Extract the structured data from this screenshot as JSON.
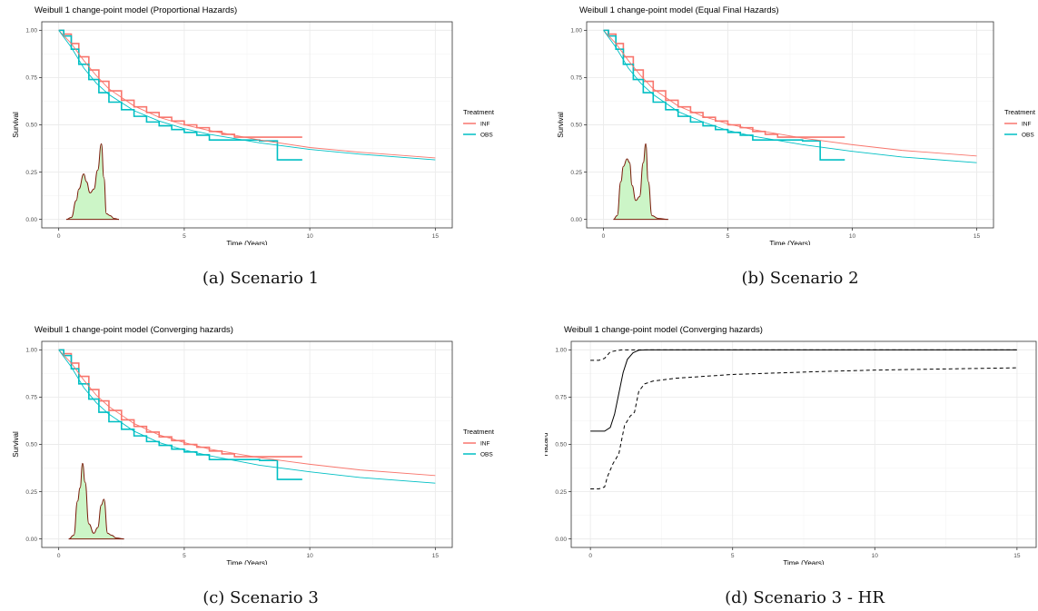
{
  "colors": {
    "inf": "#F8766D",
    "obs": "#00BFC4",
    "density_fill": "#ccf5c7",
    "density_line": "#7a1a0a",
    "grid_major": "#ebebeb",
    "grid_minor": "#f4f4f4",
    "axis_text": "#4d4d4d"
  },
  "captions": [
    "(a) Scenario 1",
    "(b) Scenario 2",
    "(c) Scenario 3",
    "(d) Scenario 3 - HR"
  ],
  "chart_data": [
    {
      "type": "line",
      "title": "Weibull 1 change-point model (Proportional Hazards)",
      "xlabel": "Time (Years)",
      "ylabel": "Survival",
      "xlim": [
        0,
        15
      ],
      "ylim": [
        0,
        1
      ],
      "xticks": [
        0,
        5,
        10,
        15
      ],
      "yticks": [
        0,
        0.25,
        0.5,
        0.75,
        1
      ],
      "xtick_labels": [
        "0",
        "5",
        "10",
        "15"
      ],
      "ytick_labels": [
        "0.00",
        "0.25",
        "0.50",
        "0.75",
        "1.00"
      ],
      "grid": true,
      "legend": {
        "title": "Treatment",
        "position": "right",
        "entries": [
          "INF",
          "OBS"
        ]
      },
      "series": [
        {
          "name": "INF",
          "kind": "km",
          "x": [
            0,
            0.2,
            0.5,
            0.8,
            1.2,
            1.6,
            2,
            2.5,
            3,
            3.5,
            4,
            4.5,
            5,
            5.5,
            6,
            6.5,
            7,
            8,
            9,
            9.7
          ],
          "y": [
            1,
            0.98,
            0.93,
            0.86,
            0.79,
            0.73,
            0.68,
            0.63,
            0.595,
            0.565,
            0.54,
            0.52,
            0.5,
            0.485,
            0.465,
            0.45,
            0.435,
            0.435,
            0.435,
            0.435
          ]
        },
        {
          "name": "OBS",
          "kind": "km",
          "x": [
            0,
            0.2,
            0.5,
            0.8,
            1.2,
            1.6,
            2,
            2.5,
            3,
            3.5,
            4,
            4.5,
            5,
            5.5,
            6,
            7,
            8,
            8.7,
            8.71,
            9.7
          ],
          "y": [
            1,
            0.97,
            0.9,
            0.82,
            0.74,
            0.67,
            0.62,
            0.58,
            0.545,
            0.515,
            0.495,
            0.475,
            0.46,
            0.445,
            0.42,
            0.42,
            0.415,
            0.415,
            0.315,
            0.315
          ]
        },
        {
          "name": "INF",
          "kind": "fit",
          "x": [
            0,
            0.5,
            1,
            1.5,
            2,
            3,
            4,
            5,
            6,
            8,
            10,
            12,
            15
          ],
          "y": [
            1,
            0.93,
            0.84,
            0.76,
            0.69,
            0.6,
            0.54,
            0.5,
            0.47,
            0.42,
            0.38,
            0.355,
            0.325
          ]
        },
        {
          "name": "OBS",
          "kind": "fit",
          "x": [
            0,
            0.5,
            1,
            1.5,
            2,
            3,
            4,
            5,
            6,
            8,
            10,
            12,
            15
          ],
          "y": [
            1,
            0.91,
            0.8,
            0.72,
            0.66,
            0.575,
            0.52,
            0.48,
            0.45,
            0.405,
            0.37,
            0.345,
            0.315
          ]
        },
        {
          "name": "density",
          "kind": "density",
          "x": [
            0.3,
            0.5,
            0.7,
            0.8,
            1.0,
            1.1,
            1.25,
            1.4,
            1.55,
            1.7,
            1.8,
            1.9,
            2.05,
            2.2,
            2.4
          ],
          "y": [
            0.0,
            0.01,
            0.1,
            0.16,
            0.24,
            0.2,
            0.14,
            0.16,
            0.26,
            0.4,
            0.22,
            0.03,
            0.02,
            0.005,
            0.0
          ]
        }
      ]
    },
    {
      "type": "line",
      "title": "Weibull 1 change-point model (Equal Final Hazards)",
      "xlabel": "Time (Years)",
      "ylabel": "Survival",
      "xlim": [
        0,
        15
      ],
      "ylim": [
        0,
        1
      ],
      "xticks": [
        0,
        5,
        10,
        15
      ],
      "yticks": [
        0,
        0.25,
        0.5,
        0.75,
        1
      ],
      "xtick_labels": [
        "0",
        "5",
        "10",
        "15"
      ],
      "ytick_labels": [
        "0.00",
        "0.25",
        "0.50",
        "0.75",
        "1.00"
      ],
      "grid": true,
      "legend": {
        "title": "Treatment",
        "position": "right",
        "entries": [
          "INF",
          "OBS"
        ]
      },
      "series": [
        {
          "name": "INF",
          "kind": "km",
          "x": [
            0,
            0.2,
            0.5,
            0.8,
            1.2,
            1.6,
            2,
            2.5,
            3,
            3.5,
            4,
            4.5,
            5,
            5.5,
            6,
            6.5,
            7,
            8,
            9,
            9.7
          ],
          "y": [
            1,
            0.98,
            0.93,
            0.86,
            0.79,
            0.73,
            0.68,
            0.63,
            0.595,
            0.565,
            0.54,
            0.52,
            0.5,
            0.485,
            0.465,
            0.45,
            0.435,
            0.435,
            0.435,
            0.435
          ]
        },
        {
          "name": "OBS",
          "kind": "km",
          "x": [
            0,
            0.2,
            0.5,
            0.8,
            1.2,
            1.6,
            2,
            2.5,
            3,
            3.5,
            4,
            4.5,
            5,
            5.5,
            6,
            7,
            8,
            8.7,
            8.71,
            9.7
          ],
          "y": [
            1,
            0.97,
            0.9,
            0.82,
            0.74,
            0.67,
            0.62,
            0.58,
            0.545,
            0.515,
            0.495,
            0.475,
            0.46,
            0.445,
            0.42,
            0.42,
            0.415,
            0.415,
            0.315,
            0.315
          ]
        },
        {
          "name": "INF",
          "kind": "fit",
          "x": [
            0,
            0.5,
            1,
            1.5,
            2,
            3,
            4,
            5,
            6,
            8,
            10,
            12,
            15
          ],
          "y": [
            1,
            0.93,
            0.84,
            0.76,
            0.69,
            0.6,
            0.545,
            0.505,
            0.475,
            0.43,
            0.395,
            0.365,
            0.335
          ]
        },
        {
          "name": "OBS",
          "kind": "fit",
          "x": [
            0,
            0.5,
            1,
            1.5,
            2,
            3,
            4,
            5,
            6,
            8,
            10,
            12,
            15
          ],
          "y": [
            1,
            0.91,
            0.8,
            0.72,
            0.66,
            0.57,
            0.515,
            0.47,
            0.44,
            0.395,
            0.36,
            0.33,
            0.3
          ]
        },
        {
          "name": "density",
          "kind": "density",
          "x": [
            0.4,
            0.55,
            0.7,
            0.8,
            0.95,
            1.05,
            1.15,
            1.3,
            1.45,
            1.6,
            1.7,
            1.8,
            1.95,
            2.2,
            2.6
          ],
          "y": [
            0.0,
            0.02,
            0.2,
            0.28,
            0.32,
            0.3,
            0.18,
            0.1,
            0.12,
            0.3,
            0.4,
            0.2,
            0.02,
            0.005,
            0.0
          ]
        }
      ]
    },
    {
      "type": "line",
      "title": "Weibull 1 change-point model (Converging hazards)",
      "xlabel": "Time (Years)",
      "ylabel": "Survival",
      "xlim": [
        0,
        15
      ],
      "ylim": [
        0,
        1
      ],
      "xticks": [
        0,
        5,
        10,
        15
      ],
      "yticks": [
        0,
        0.25,
        0.5,
        0.75,
        1
      ],
      "xtick_labels": [
        "0",
        "5",
        "10",
        "15"
      ],
      "ytick_labels": [
        "0.00",
        "0.25",
        "0.50",
        "0.75",
        "1.00"
      ],
      "grid": true,
      "legend": {
        "title": "Treatment",
        "position": "right",
        "entries": [
          "INF",
          "OBS"
        ]
      },
      "series": [
        {
          "name": "INF",
          "kind": "km",
          "x": [
            0,
            0.2,
            0.5,
            0.8,
            1.2,
            1.6,
            2,
            2.5,
            3,
            3.5,
            4,
            4.5,
            5,
            5.5,
            6,
            6.5,
            7,
            8,
            9,
            9.7
          ],
          "y": [
            1,
            0.98,
            0.93,
            0.86,
            0.79,
            0.73,
            0.68,
            0.63,
            0.595,
            0.565,
            0.54,
            0.52,
            0.5,
            0.485,
            0.465,
            0.45,
            0.435,
            0.435,
            0.435,
            0.435
          ]
        },
        {
          "name": "OBS",
          "kind": "km",
          "x": [
            0,
            0.2,
            0.5,
            0.8,
            1.2,
            1.6,
            2,
            2.5,
            3,
            3.5,
            4,
            4.5,
            5,
            5.5,
            6,
            7,
            8,
            8.7,
            8.71,
            9.7
          ],
          "y": [
            1,
            0.97,
            0.9,
            0.82,
            0.74,
            0.67,
            0.62,
            0.58,
            0.545,
            0.515,
            0.495,
            0.475,
            0.46,
            0.445,
            0.42,
            0.42,
            0.415,
            0.415,
            0.315,
            0.315
          ]
        },
        {
          "name": "INF",
          "kind": "fit",
          "x": [
            0,
            0.5,
            1,
            1.5,
            2,
            3,
            4,
            5,
            6,
            8,
            10,
            12,
            15
          ],
          "y": [
            1,
            0.93,
            0.84,
            0.76,
            0.7,
            0.61,
            0.55,
            0.51,
            0.475,
            0.43,
            0.395,
            0.365,
            0.335
          ]
        },
        {
          "name": "OBS",
          "kind": "fit",
          "x": [
            0,
            0.5,
            1,
            1.5,
            2,
            3,
            4,
            5,
            6,
            8,
            10,
            12,
            15
          ],
          "y": [
            1,
            0.91,
            0.8,
            0.72,
            0.66,
            0.57,
            0.51,
            0.47,
            0.44,
            0.39,
            0.355,
            0.325,
            0.295
          ]
        },
        {
          "name": "density",
          "kind": "density",
          "x": [
            0.4,
            0.6,
            0.75,
            0.85,
            0.95,
            1.05,
            1.2,
            1.4,
            1.55,
            1.7,
            1.8,
            1.95,
            2.1,
            2.3,
            2.6
          ],
          "y": [
            0.0,
            0.02,
            0.2,
            0.27,
            0.4,
            0.3,
            0.08,
            0.03,
            0.06,
            0.18,
            0.21,
            0.03,
            0.02,
            0.005,
            0.0
          ]
        }
      ]
    },
    {
      "type": "line",
      "title": "Weibull 1 change-point model (Converging hazards)",
      "xlabel": "Time (Years)",
      "ylabel": "Hazard",
      "xlim": [
        0,
        15
      ],
      "ylim": [
        0,
        1
      ],
      "xticks": [
        0,
        5,
        10,
        15
      ],
      "yticks": [
        0,
        0.25,
        0.5,
        0.75,
        1
      ],
      "xtick_labels": [
        "0",
        "5",
        "10",
        "15"
      ],
      "ytick_labels": [
        "0.00",
        "0.25",
        "0.50",
        "0.75",
        "1.00"
      ],
      "grid": true,
      "series": [
        {
          "kind": "hr",
          "style": "solid",
          "x": [
            0,
            0.5,
            0.7,
            0.85,
            1.0,
            1.15,
            1.3,
            1.5,
            1.7,
            2,
            3,
            5,
            10,
            15
          ],
          "y": [
            0.57,
            0.57,
            0.59,
            0.66,
            0.77,
            0.88,
            0.95,
            0.985,
            0.998,
            1,
            1,
            1,
            1,
            1
          ]
        },
        {
          "kind": "hr",
          "style": "dashed",
          "x": [
            0,
            0.3,
            0.5,
            0.7,
            0.9,
            1.1,
            1.3,
            1.5,
            1.7,
            2,
            3,
            5,
            10,
            15
          ],
          "y": [
            0.945,
            0.945,
            0.955,
            0.99,
            0.995,
            1,
            1,
            1,
            1,
            1,
            1,
            1,
            1,
            1
          ]
        },
        {
          "kind": "hr",
          "style": "dashed",
          "x": [
            0,
            0.3,
            0.5,
            0.6,
            0.8,
            1.0,
            1.2,
            1.4,
            1.55,
            1.7,
            1.9,
            2.2,
            3,
            4,
            5,
            6,
            8,
            10,
            12,
            15
          ],
          "y": [
            0.265,
            0.265,
            0.275,
            0.33,
            0.4,
            0.45,
            0.6,
            0.65,
            0.67,
            0.78,
            0.82,
            0.835,
            0.85,
            0.86,
            0.87,
            0.875,
            0.885,
            0.893,
            0.898,
            0.905
          ]
        }
      ]
    }
  ]
}
